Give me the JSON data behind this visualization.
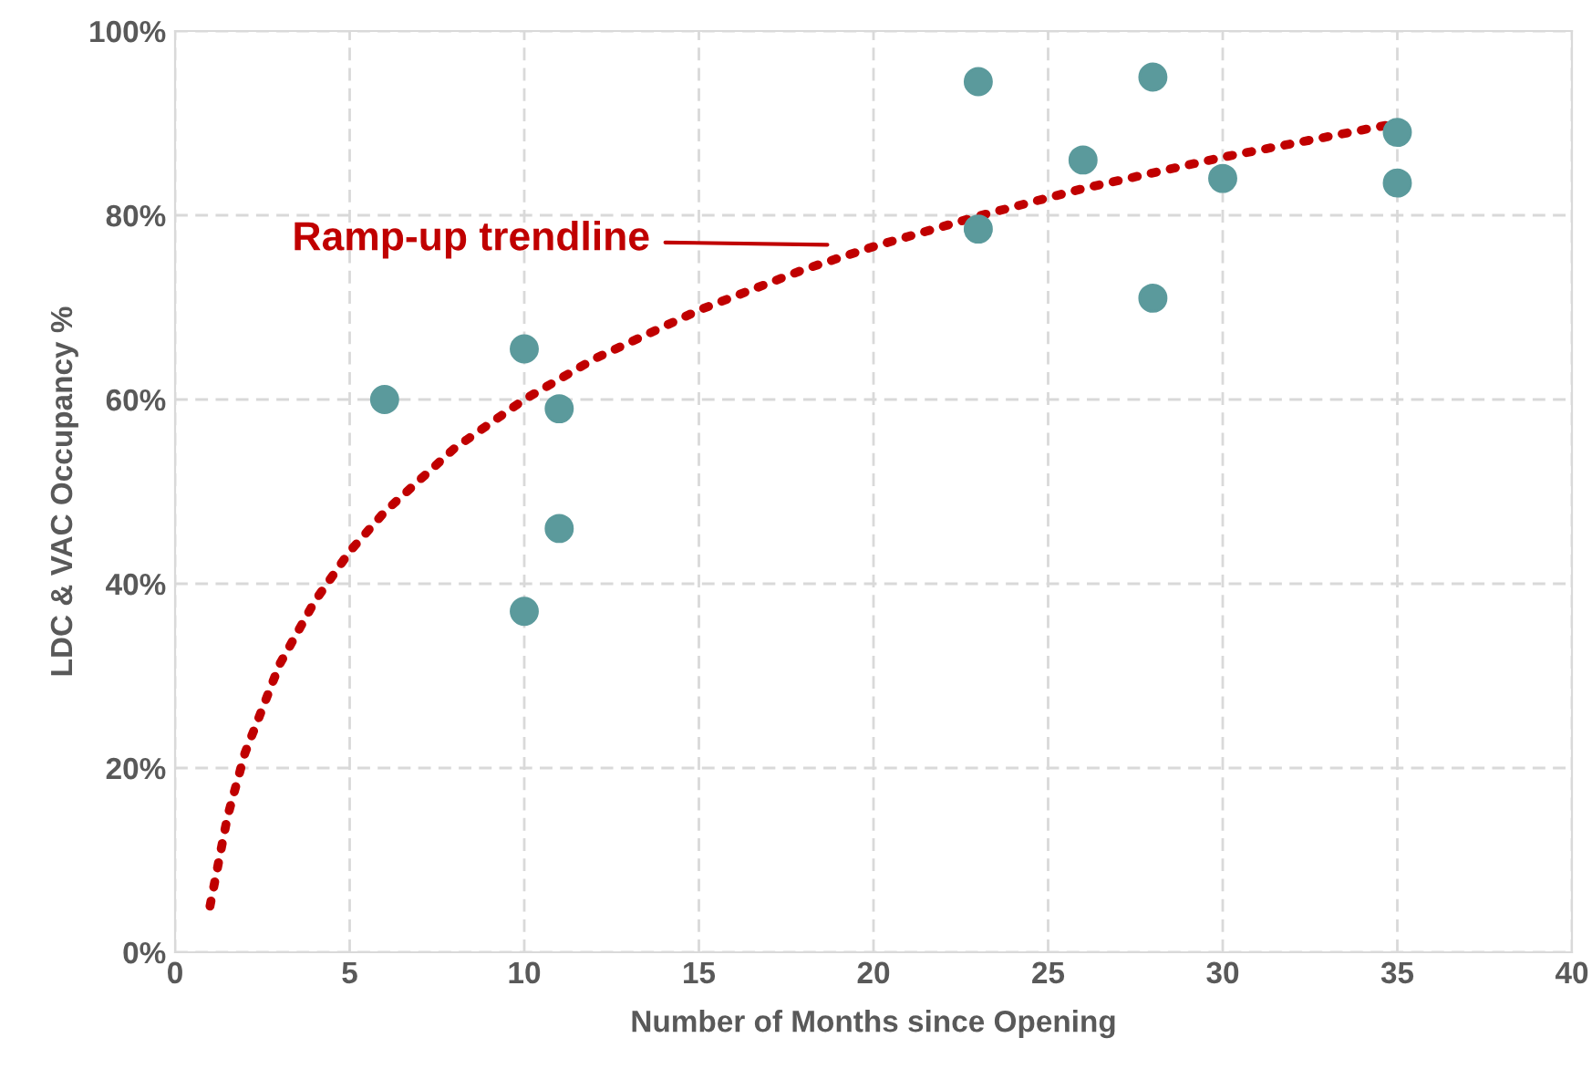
{
  "chart_data": {
    "type": "scatter",
    "xlabel": "Number of Months since Opening",
    "ylabel": "LDC & VAC Occupancy %",
    "xlim": [
      0,
      40
    ],
    "xticks": [
      0,
      5,
      10,
      15,
      20,
      25,
      30,
      35,
      40
    ],
    "ylim": [
      0,
      100
    ],
    "yticks": [
      {
        "value": 0,
        "label": "0%"
      },
      {
        "value": 20,
        "label": "20%"
      },
      {
        "value": 40,
        "label": "40%"
      },
      {
        "value": 60,
        "label": "60%"
      },
      {
        "value": 80,
        "label": "80%"
      },
      {
        "value": 100,
        "label": "100%"
      }
    ],
    "grid": true,
    "legend": false,
    "series": [
      {
        "color": "#5b9a9c",
        "marker": "circle",
        "x": [
          6,
          10,
          10,
          11,
          11,
          23,
          23,
          26,
          28,
          28,
          30,
          35,
          35
        ],
        "values": [
          60,
          65.5,
          37,
          59,
          46,
          94.5,
          78.5,
          86,
          95,
          71,
          84,
          89,
          83.5
        ]
      },
      {
        "type": "line",
        "color": "#c00000",
        "line_style": "dotted",
        "marker": "none",
        "x": [
          1,
          1.5,
          2,
          3,
          4,
          5,
          6,
          8,
          10,
          12,
          15,
          18,
          20,
          23,
          26,
          30,
          35
        ],
        "values": [
          5,
          14.7,
          21.6,
          31.3,
          38.1,
          43.5,
          47.8,
          54.7,
          60,
          64.4,
          69.7,
          74.1,
          76.6,
          79.9,
          82.9,
          86.3,
          90
        ]
      }
    ],
    "annotations": [
      "Ramp-up trendline"
    ]
  }
}
